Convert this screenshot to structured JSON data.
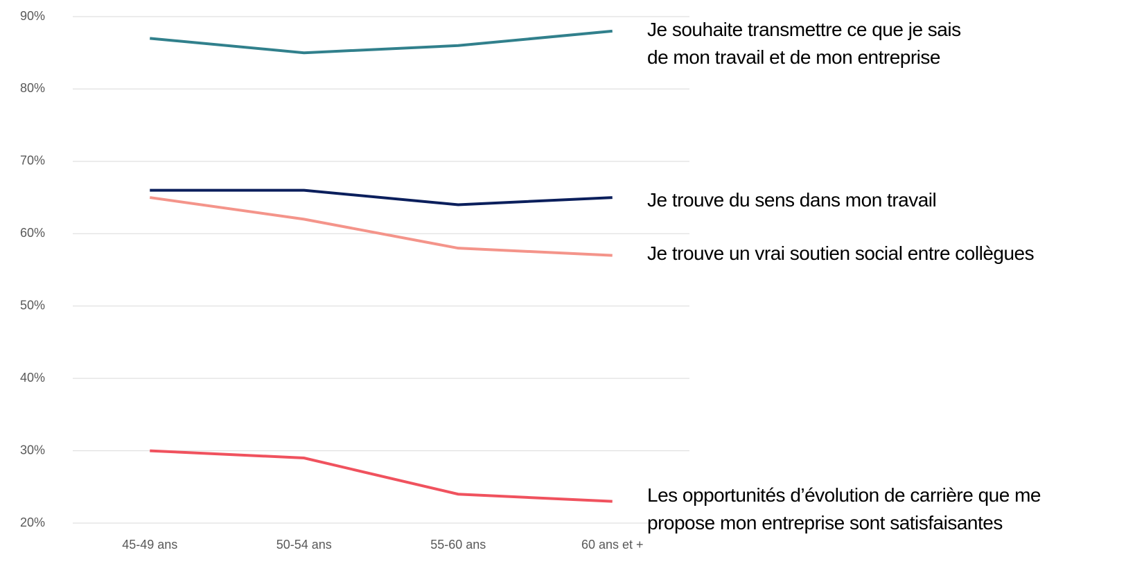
{
  "chart_data": {
    "type": "line",
    "categories": [
      "45-49 ans",
      "50-54 ans",
      "55-60 ans",
      "60 ans et +"
    ],
    "series": [
      {
        "name": "Je souhaite transmettre ce que je sais\nde mon travail et de mon entreprise",
        "color": "#31808c",
        "values": [
          87,
          85,
          86,
          88
        ]
      },
      {
        "name": "Je trouve du sens dans mon travail",
        "color": "#0b1f5c",
        "values": [
          66,
          66,
          64,
          65
        ]
      },
      {
        "name": "Je trouve un vrai soutien social entre collègues",
        "color": "#f4948a",
        "values": [
          65,
          62,
          58,
          57
        ]
      },
      {
        "name": "Les opportunités d’évolution de carrière que me\npropose mon entreprise sont satisfaisantes",
        "color": "#f0525e",
        "values": [
          30,
          29,
          24,
          23
        ]
      }
    ],
    "ylim": [
      20,
      90
    ],
    "yticks": [
      {
        "value": 20,
        "label": "20%"
      },
      {
        "value": 30,
        "label": "30%"
      },
      {
        "value": 40,
        "label": "40%"
      },
      {
        "value": 50,
        "label": "50%"
      },
      {
        "value": 60,
        "label": "60%"
      },
      {
        "value": 70,
        "label": "70%"
      },
      {
        "value": 80,
        "label": "80%"
      },
      {
        "value": 90,
        "label": "90%"
      }
    ],
    "grid": true
  }
}
